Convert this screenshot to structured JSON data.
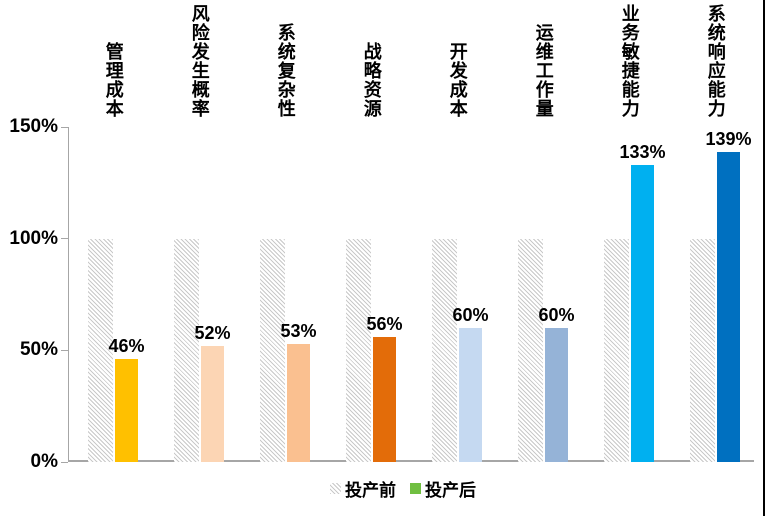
{
  "chart_data": {
    "type": "bar",
    "title": "",
    "xlabel": "",
    "ylabel": "",
    "categories": [
      "管理成本",
      "风险发生概率",
      "系统复杂性",
      "战略资源",
      "开发成本",
      "运维工作量",
      "业务敏捷能力",
      "系统响应能力"
    ],
    "series": [
      {
        "name": "投产前",
        "values": [
          100,
          100,
          100,
          100,
          100,
          100,
          100,
          100
        ],
        "style": "hatched-gray"
      },
      {
        "name": "投产后",
        "values": [
          46,
          52,
          53,
          56,
          60,
          60,
          133,
          139
        ],
        "bar_colors": [
          "#FFC000",
          "#FCD5B4",
          "#FAC090",
          "#E36C09",
          "#C5D9F1",
          "#95B3D7",
          "#00B0F0",
          "#0070C0"
        ]
      }
    ],
    "data_labels": [
      "46%",
      "52%",
      "53%",
      "56%",
      "60%",
      "60%",
      "133%",
      "139%"
    ],
    "y_ticks": [
      {
        "label": "0%",
        "value": 0
      },
      {
        "label": "50%",
        "value": 50
      },
      {
        "label": "100%",
        "value": 100
      },
      {
        "label": "150%",
        "value": 150
      }
    ],
    "ylim": [
      0,
      150
    ],
    "grid": false,
    "legend": {
      "position": "bottom",
      "items": [
        {
          "label": "投产前",
          "swatch": "hatched-gray"
        },
        {
          "label": "投产后",
          "swatch_color": "#70BF41"
        }
      ]
    },
    "colors": {
      "axis": "#A6A6A6",
      "hatch_stripe": "#C9C9C9",
      "text": "#000000",
      "right_border": "#000000"
    }
  }
}
